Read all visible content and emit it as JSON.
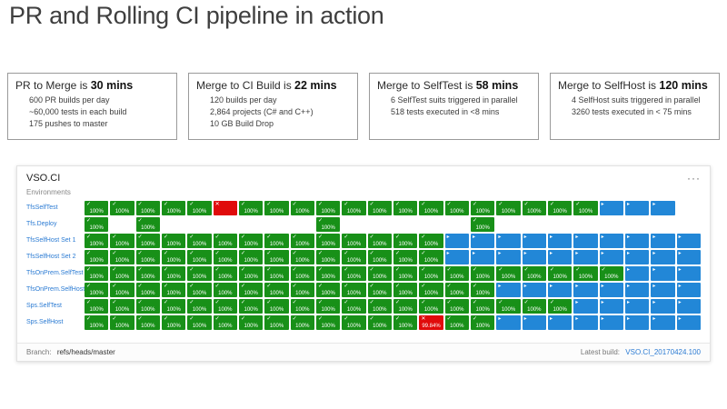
{
  "page_title": "PR and Rolling CI pipeline in action",
  "stat_boxes": [
    {
      "headline_prefix": "PR to Merge is ",
      "headline_value": "30 mins",
      "lines": [
        "600 PR builds per day",
        "~60,000 tests in each build",
        "175 pushes to master"
      ]
    },
    {
      "headline_prefix": "Merge to CI Build is ",
      "headline_value": "22 mins",
      "lines": [
        "120 builds per day",
        "2,864 projects (C# and C++)",
        "10 GB Build Drop"
      ]
    },
    {
      "headline_prefix": "Merge to SelfTest is ",
      "headline_value": "58 mins",
      "lines": [
        "6 SelfTest suits triggered in parallel",
        "518 tests executed in <8 mins"
      ]
    },
    {
      "headline_prefix": "Merge to SelfHost is ",
      "headline_value": "120 mins",
      "lines": [
        "4 SelfHost suits triggered in parallel",
        "3260 tests executed in < 75 mins"
      ]
    }
  ],
  "dashboard": {
    "title": "VSO.CI",
    "menu_icon": "···",
    "environments_label": "Environments",
    "pass_value": "100%",
    "icons": {
      "pass": "✓",
      "fail": "✕",
      "running": "▸"
    },
    "rows": [
      {
        "label": "TfsSelfTest",
        "cells": [
          "g",
          "g",
          "g",
          "g",
          "g",
          "r",
          "g",
          "g",
          "g",
          "g",
          "g",
          "g",
          "g",
          "g",
          "g",
          "g",
          "g",
          "g",
          "g",
          "g",
          "b",
          "b",
          "b",
          "e"
        ]
      },
      {
        "label": "Tfs.Deploy",
        "cells": [
          "g",
          "e",
          "g",
          "e",
          "e",
          "e",
          "e",
          "e",
          "e",
          "g",
          "e",
          "e",
          "e",
          "e",
          "e",
          "g",
          "e",
          "e",
          "e",
          "e",
          "e",
          "e",
          "e",
          "e"
        ]
      },
      {
        "label": "TfsSelfHost Set 1",
        "cells": [
          "g",
          "g",
          "g",
          "g",
          "g",
          "g",
          "g",
          "g",
          "g",
          "g",
          "g",
          "g",
          "g",
          "g",
          "b",
          "b",
          "b",
          "b",
          "b",
          "b",
          "b",
          "b",
          "b",
          "b"
        ]
      },
      {
        "label": "TfsSelfHost Set 2",
        "cells": [
          "g",
          "g",
          "g",
          "g",
          "g",
          "g",
          "g",
          "g",
          "g",
          "g",
          "g",
          "g",
          "g",
          "g",
          "b",
          "b",
          "b",
          "b",
          "b",
          "b",
          "b",
          "b",
          "b",
          "b"
        ]
      },
      {
        "label": "TfsOnPrem.SelfTest",
        "cells": [
          "g",
          "g",
          "g",
          "g",
          "g",
          "g",
          "g",
          "g",
          "g",
          "g",
          "g",
          "g",
          "g",
          "g",
          "g",
          "g",
          "g",
          "g",
          "g",
          "g",
          "g",
          "b",
          "b",
          "b"
        ]
      },
      {
        "label": "TfsOnPrem.SelfHost",
        "cells": [
          "g",
          "g",
          "g",
          "g",
          "g",
          "g",
          "g",
          "g",
          "g",
          "g",
          "g",
          "g",
          "g",
          "g",
          "g",
          "g",
          "b",
          "b",
          "b",
          "b",
          "b",
          "b",
          "b",
          "b"
        ]
      },
      {
        "label": "Sps.SelfTest",
        "cells": [
          "g",
          "g",
          "g",
          "g",
          "g",
          "g",
          "g",
          "g",
          "g",
          "g",
          "g",
          "g",
          "g",
          "g",
          "g",
          "g",
          "g",
          "g",
          "g",
          "b",
          "b",
          "b",
          "b",
          "b"
        ]
      },
      {
        "label": "Sps.SelfHost",
        "cells": [
          "g",
          "g",
          "g",
          "g",
          "g",
          "g",
          "g",
          "g",
          "g",
          "g",
          "g",
          "g",
          "g",
          "r:99.84%",
          "g",
          "g",
          "b",
          "b",
          "b",
          "b",
          "b",
          "b",
          "b",
          "b"
        ]
      }
    ],
    "footer": {
      "branch_label": "Branch:",
      "branch_value": "refs/heads/master",
      "latest_build_label": "Latest build:",
      "latest_build_value": "VSO.CI_20170424.100"
    }
  },
  "colors": {
    "green": "#189018",
    "red": "#e00b0b",
    "blue": "#2287d7",
    "link": "#2b7bd3"
  }
}
